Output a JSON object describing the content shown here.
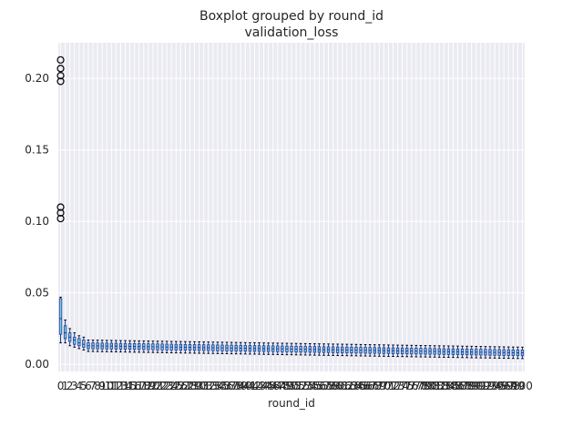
{
  "chart_data": {
    "type": "boxplot",
    "title": "Boxplot grouped by round_id",
    "subtitle": "validation_loss",
    "xlabel": "round_id",
    "ylabel": "",
    "ylim": [
      -0.005,
      0.225
    ],
    "yticks": [
      0.0,
      0.05,
      0.1,
      0.15,
      0.2
    ],
    "yticklabels": [
      "0.00",
      "0.05",
      "0.10",
      "0.15",
      "0.20"
    ],
    "grid": true,
    "background": "#eaeaf2",
    "box_fill": "#7ed0e6",
    "box_edge": "#1f3a93",
    "median_color": "#1f3a93",
    "categories_range": [
      0,
      100
    ],
    "groups": [
      {
        "round_id": 0,
        "q1": 0.021,
        "median": 0.032,
        "q3": 0.046,
        "whisker_low": 0.015,
        "whisker_high": 0.047,
        "outliers": [
          0.198,
          0.202,
          0.207,
          0.213,
          0.102,
          0.106,
          0.11
        ]
      },
      {
        "round_id": 1,
        "q1": 0.018,
        "median": 0.022,
        "q3": 0.027,
        "whisker_low": 0.015,
        "whisker_high": 0.031,
        "outliers": []
      },
      {
        "round_id": 2,
        "q1": 0.016,
        "median": 0.019,
        "q3": 0.022,
        "whisker_low": 0.013,
        "whisker_high": 0.025,
        "outliers": []
      },
      {
        "round_id": 3,
        "q1": 0.014,
        "median": 0.017,
        "q3": 0.019,
        "whisker_low": 0.012,
        "whisker_high": 0.022,
        "outliers": []
      },
      {
        "round_id": 4,
        "q1": 0.013,
        "median": 0.015,
        "q3": 0.018,
        "whisker_low": 0.011,
        "whisker_high": 0.02,
        "outliers": []
      },
      {
        "round_id": 5,
        "q1": 0.012,
        "median": 0.014,
        "q3": 0.017,
        "whisker_low": 0.01,
        "whisker_high": 0.019,
        "outliers": []
      }
    ],
    "later_rounds_trend": {
      "median_start": 0.013,
      "median_end": 0.008,
      "iqr_half": 0.002,
      "whisker_extra": 0.002
    },
    "xticklabels_sample": [
      "0",
      "1",
      "2",
      "3",
      "4",
      "5",
      "6",
      "7",
      "8",
      "9",
      "10",
      "90",
      "100"
    ]
  }
}
